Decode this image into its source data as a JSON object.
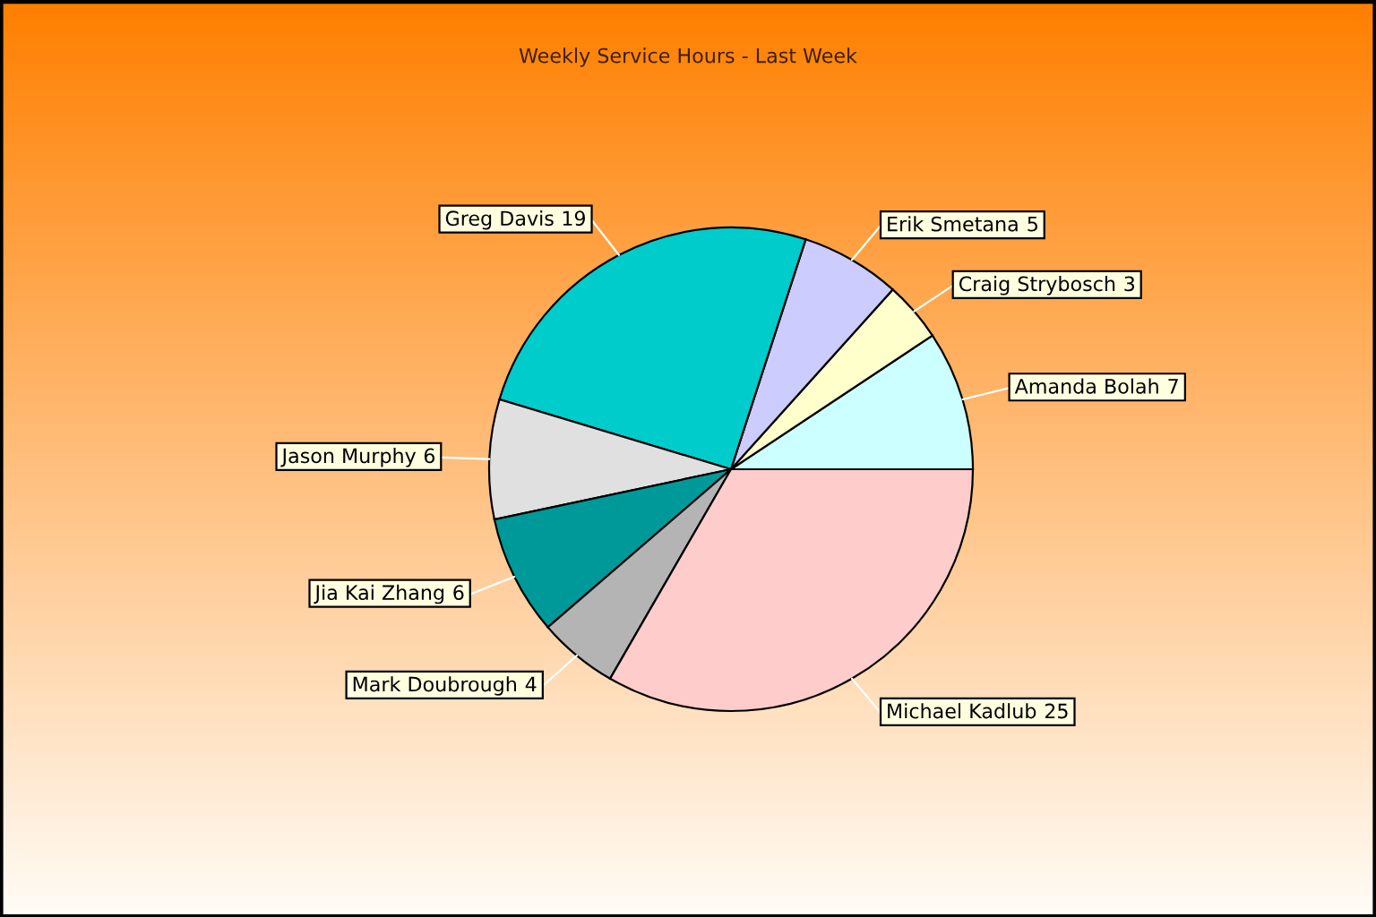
{
  "chart_data": {
    "type": "pie",
    "title": "Weekly Service Hours - Last Week",
    "categories": [
      "Amanda Bolah",
      "Craig Strybosch",
      "Erik Smetana",
      "Greg Davis",
      "Jason Murphy",
      "Jia Kai Zhang",
      "Mark Doubrough",
      "Michael Kadlub"
    ],
    "values": [
      7,
      3,
      5,
      19,
      6,
      6,
      4,
      25
    ],
    "colors": [
      "#ccffff",
      "#ffffcc",
      "#ccccff",
      "#00cccc",
      "#e0e0e0",
      "#009999",
      "#b4b4b4",
      "#ffcccc"
    ],
    "data_labels": true
  }
}
